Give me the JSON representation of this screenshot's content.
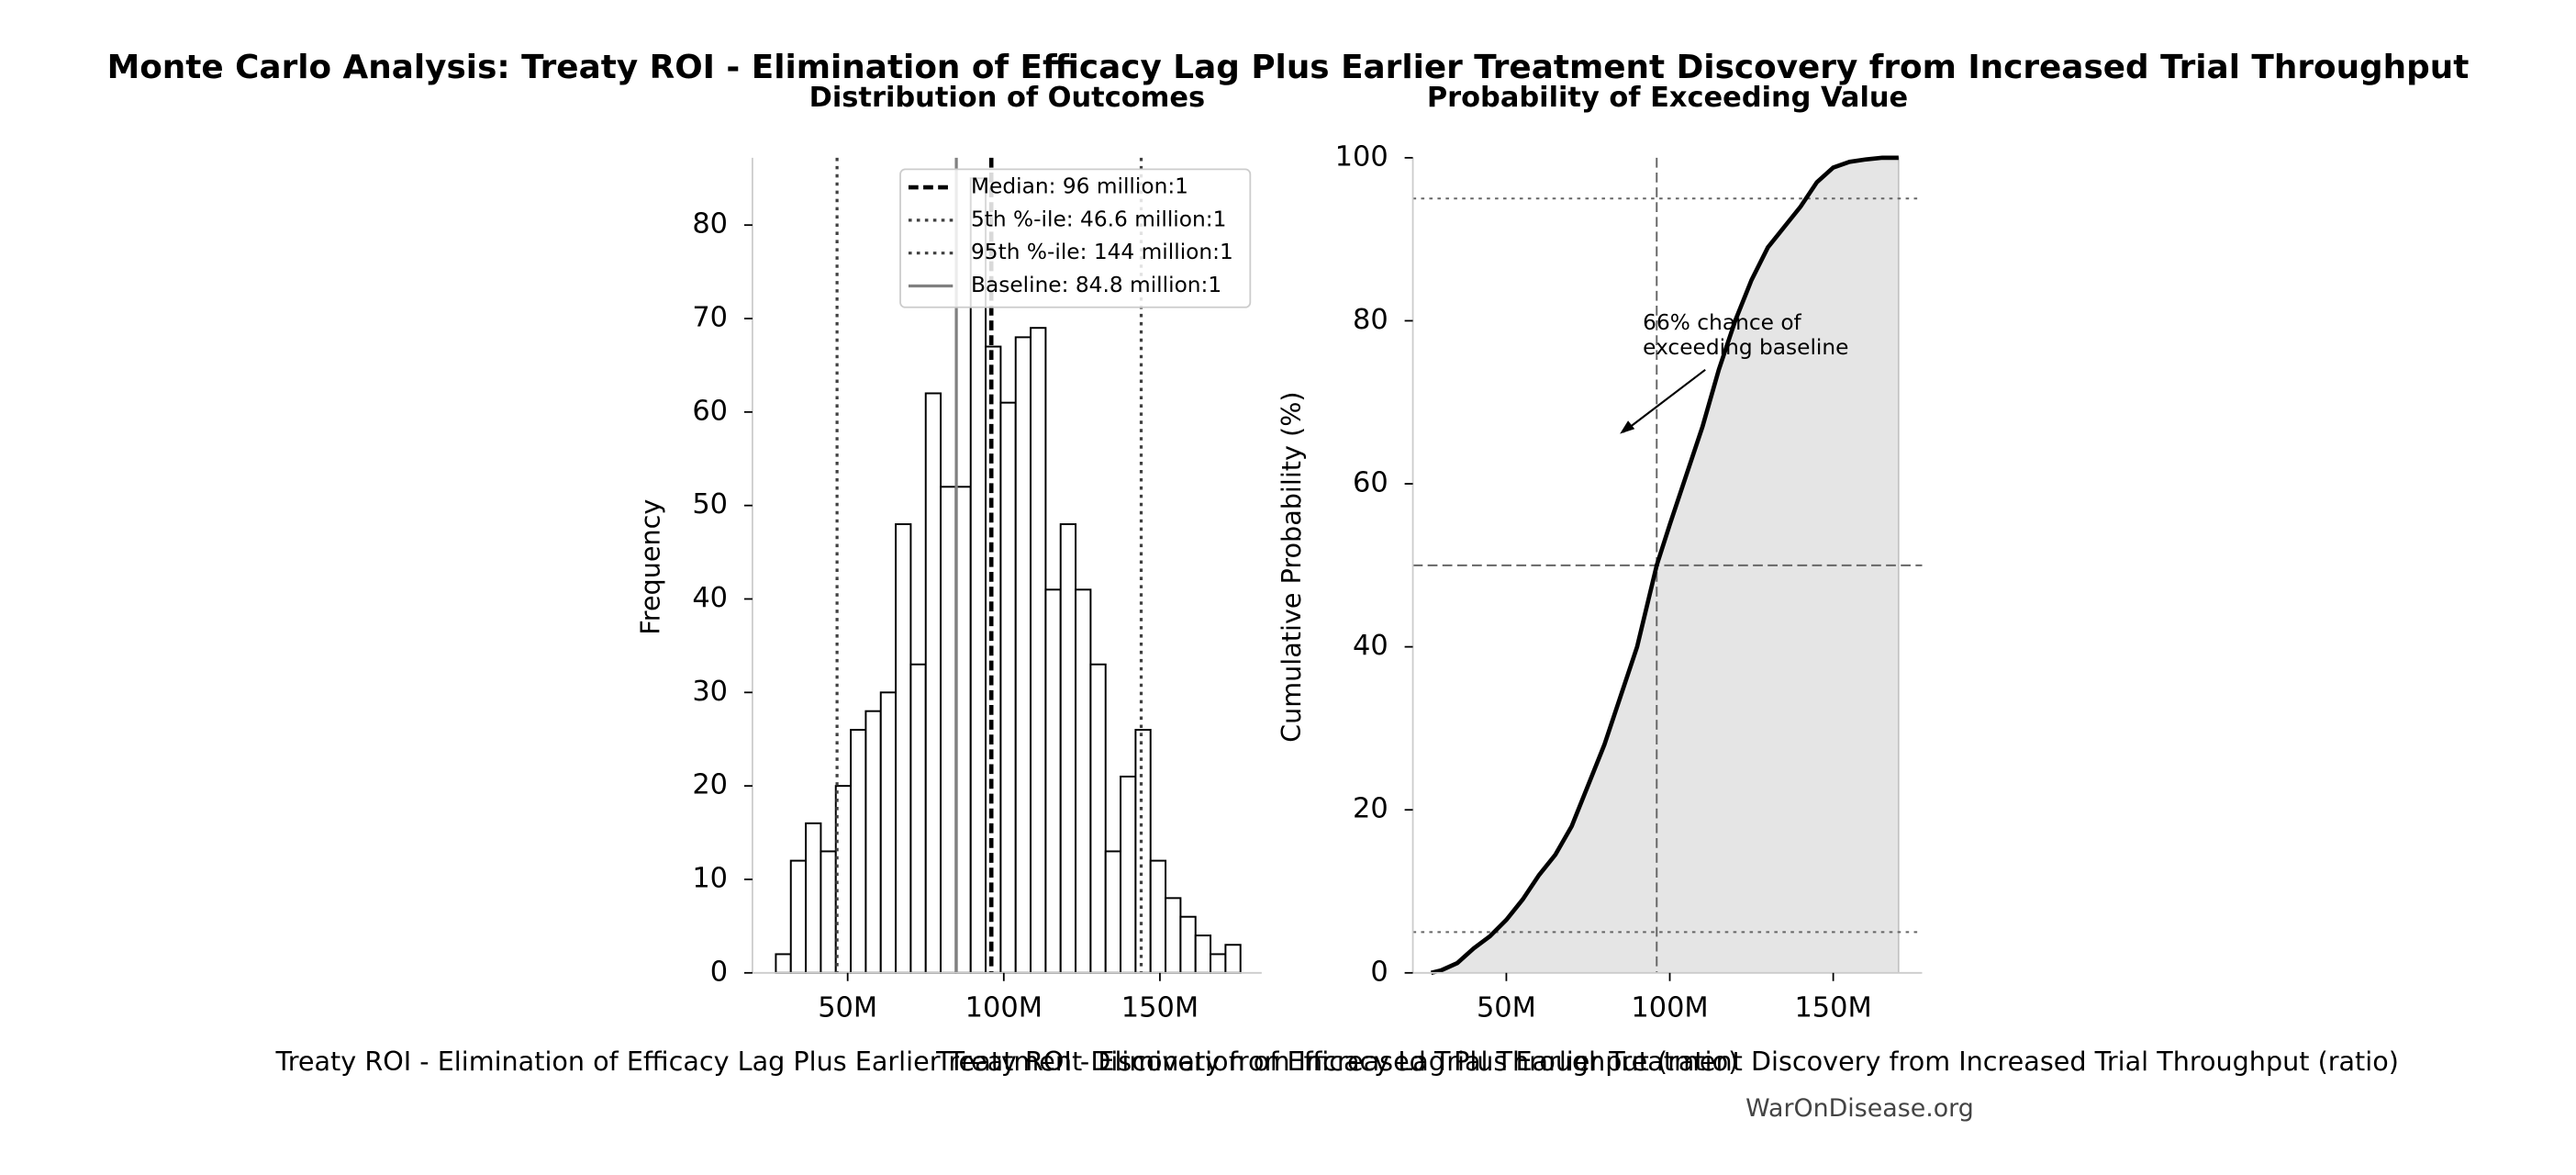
{
  "title": "Monte Carlo Analysis: Treaty ROI - Elimination of Efficacy Lag Plus Earlier Treatment Discovery from Increased Trial Throughput",
  "watermark": "WarOnDisease.org",
  "chart_data": [
    {
      "type": "histogram",
      "title": "Distribution of Outcomes",
      "xlabel": "Treaty ROI - Elimination of Efficacy Lag Plus Earlier Treatment Discovery from Increased Trial Throughput (ratio)",
      "ylabel": "Frequency",
      "bins": [
        27000000,
        31800000,
        36600000,
        41400000,
        46200000,
        51000000,
        55800000,
        60600000,
        65400000,
        70200000,
        75000000,
        79800000,
        84600000,
        89400000,
        94200000,
        99000000,
        103800000,
        108600000,
        113400000,
        118200000,
        123000000,
        127800000,
        132600000,
        137400000,
        142200000,
        147000000,
        151800000,
        156600000,
        161400000,
        166200000,
        171000000,
        175800000
      ],
      "values": [
        2,
        12,
        16,
        13,
        20,
        26,
        28,
        30,
        48,
        33,
        62,
        52,
        52,
        85,
        67,
        61,
        68,
        69,
        41,
        48,
        41,
        33,
        13,
        21,
        26,
        12,
        8,
        6,
        4,
        2,
        3
      ],
      "color": "#ffffff",
      "edgecolor": "#000000",
      "xlim": [
        19500000,
        182600000
      ],
      "xticks": [
        {
          "value": 50000000,
          "label": "50M"
        },
        {
          "value": 100000000,
          "label": "100M"
        },
        {
          "value": 150000000,
          "label": "150M"
        }
      ],
      "ylim": [
        0,
        87.2
      ],
      "yticks": [
        0,
        10,
        20,
        30,
        40,
        50,
        60,
        70,
        80
      ],
      "legend": "upper right",
      "reference_lines": [
        {
          "value": 96000000,
          "label": "Median: 96 million:1",
          "style": "dashed",
          "color": "#000000"
        },
        {
          "value": 46600000,
          "label": "5th %-ile: 46.6 million:1",
          "style": "dotted",
          "color": "#404040"
        },
        {
          "value": 144000000,
          "label": "95th %-ile: 144 million:1",
          "style": "dotted",
          "color": "#404040"
        },
        {
          "value": 84800000,
          "label": "Baseline: 84.8 million:1",
          "style": "solid",
          "color": "#808080"
        }
      ]
    },
    {
      "type": "cdf",
      "title": "Probability of Exceeding Value",
      "xlabel": "Treaty ROI - Elimination of Efficacy Lag Plus Earlier Treatment Discovery from Increased Trial Throughput (ratio)",
      "ylabel": "Cumulative Probability (%)",
      "x": [
        27000000,
        30000000,
        35000000,
        40000000,
        45000000,
        50000000,
        55000000,
        60000000,
        65000000,
        70000000,
        75000000,
        80000000,
        85000000,
        90000000,
        96000000,
        100000000,
        105000000,
        110000000,
        115000000,
        120000000,
        125000000,
        130000000,
        135000000,
        140000000,
        145000000,
        150000000,
        155000000,
        160000000,
        165000000,
        170000000
      ],
      "values": [
        0,
        0.3,
        1.2,
        3,
        4.5,
        6.5,
        9,
        12,
        14.5,
        18,
        23,
        28,
        34,
        40,
        50,
        55,
        61,
        67,
        74,
        80,
        85,
        89,
        91.5,
        94,
        97,
        98.8,
        99.5,
        99.8,
        100,
        100
      ],
      "color": "#000000",
      "fill": "#e5e5e5",
      "xlim": [
        21400000,
        177200000
      ],
      "xticks": [
        {
          "value": 50000000,
          "label": "50M"
        },
        {
          "value": 100000000,
          "label": "100M"
        },
        {
          "value": 150000000,
          "label": "150M"
        }
      ],
      "ylim": [
        0,
        100
      ],
      "yticks": [
        0,
        20,
        40,
        60,
        80,
        100
      ],
      "hlines": [
        {
          "value": 5,
          "style": "dotted"
        },
        {
          "value": 50,
          "style": "dashed"
        },
        {
          "value": 95,
          "style": "dotted"
        }
      ],
      "vlines": [
        {
          "value": 96000000,
          "style": "dashed"
        }
      ],
      "annotation": [
        "66% chance of",
        "exceeding baseline"
      ]
    }
  ]
}
